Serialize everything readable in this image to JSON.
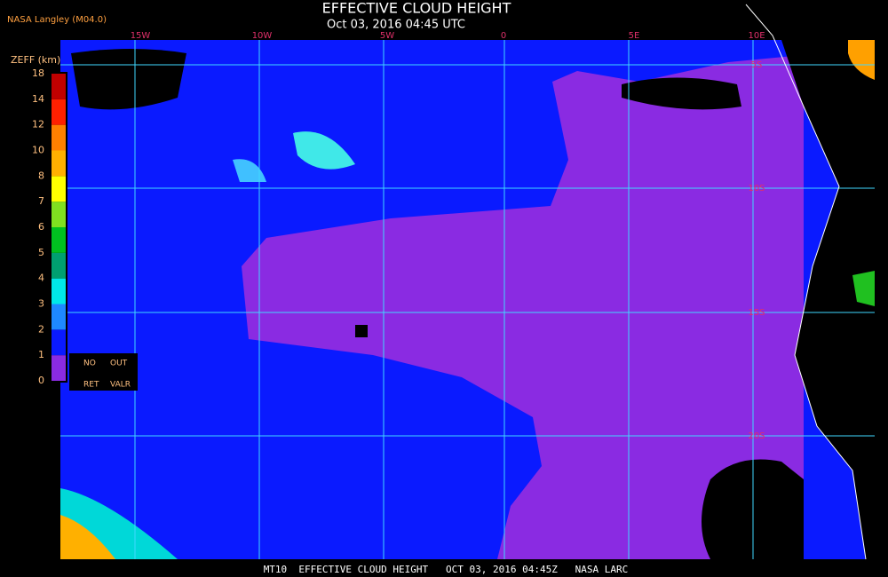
{
  "header": {
    "title": "EFFECTIVE CLOUD HEIGHT",
    "subtitle": "Oct 03, 2016 04:45 UTC",
    "source": "NASA Langley (M04.0)"
  },
  "colorbar": {
    "label": "ZEFF (km)",
    "ticks": [
      0,
      1,
      2,
      3,
      4,
      5,
      6,
      7,
      8,
      10,
      12,
      14,
      18
    ],
    "colors": [
      "#8a2be2",
      "#0a1aff",
      "#1e88ff",
      "#00e8e8",
      "#00a070",
      "#00c020",
      "#80e020",
      "#ffff00",
      "#ffb000",
      "#ff8000",
      "#ff2000",
      "#c00000"
    ],
    "notes": [
      "NO",
      "OUT",
      "RET",
      "VALR"
    ]
  },
  "map": {
    "longitudes": [
      "15W",
      "10W",
      "5W",
      "0",
      "5E",
      "10E"
    ],
    "latitudes": [
      "5S",
      "10S",
      "15S",
      "20S"
    ]
  },
  "footer": "MT10  EFFECTIVE CLOUD HEIGHT   OCT 03, 2016 04:45Z   NASA LARC"
}
